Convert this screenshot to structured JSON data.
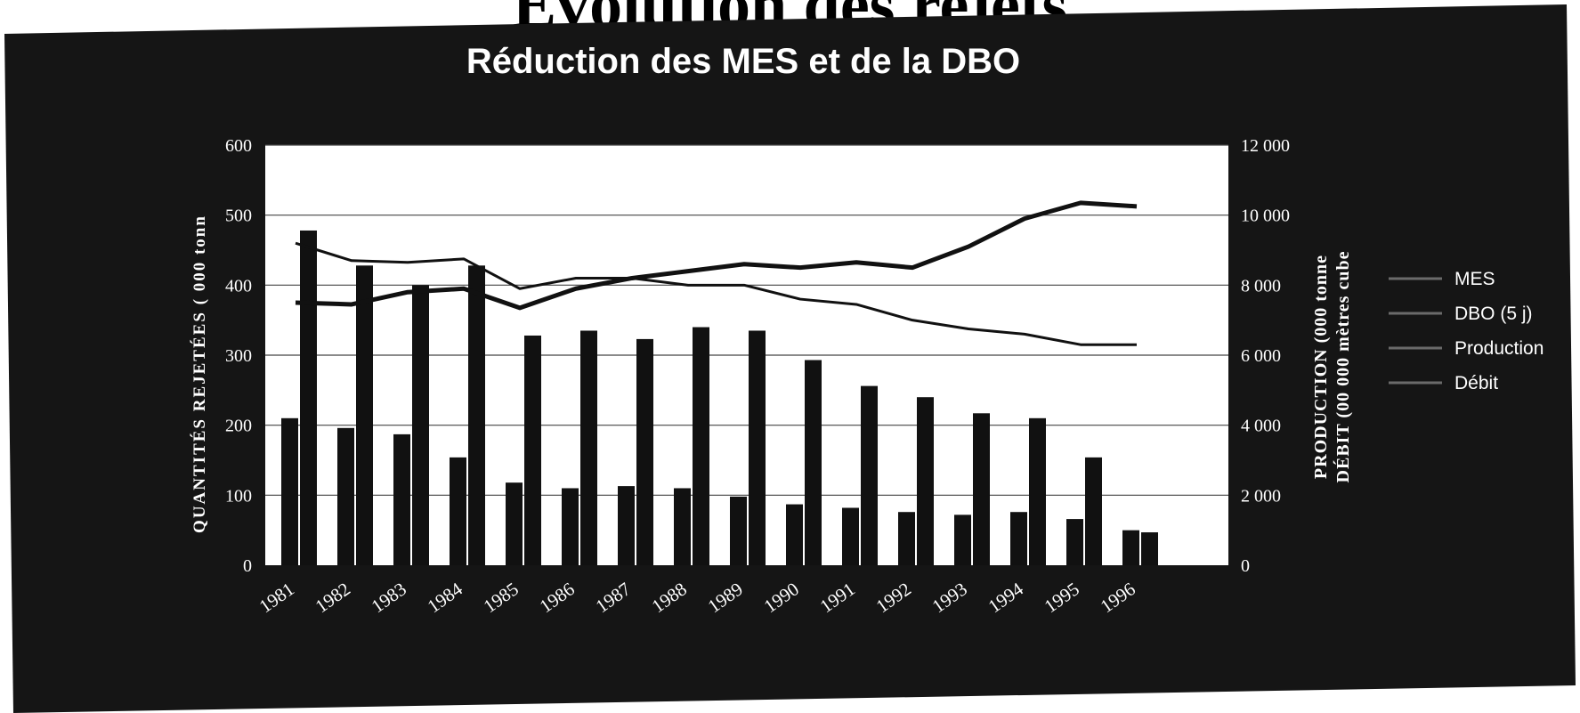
{
  "page": {
    "heading": "Evolution des rejets"
  },
  "chart_data": {
    "type": "bar",
    "title": "Réduction des MES et de la DBO",
    "categories": [
      "1981",
      "1982",
      "1983",
      "1984",
      "1985",
      "1986",
      "1987",
      "1988",
      "1989",
      "1990",
      "1991",
      "1992",
      "1993",
      "1994",
      "1995",
      "1996"
    ],
    "series": [
      {
        "name": "MES",
        "kind": "bar",
        "axis": "left",
        "color": "#111111",
        "values": [
          210,
          196,
          187,
          154,
          118,
          110,
          113,
          110,
          98,
          87,
          82,
          76,
          72,
          76,
          66,
          50
        ]
      },
      {
        "name": "DBO (5 j)",
        "kind": "bar",
        "axis": "left",
        "color": "#111111",
        "values": [
          478,
          428,
          400,
          428,
          328,
          335,
          323,
          340,
          335,
          293,
          256,
          240,
          217,
          210,
          154,
          47
        ]
      },
      {
        "name": "Production",
        "kind": "line",
        "axis": "right",
        "color": "#111111",
        "values": [
          9200,
          8700,
          8650,
          8750,
          7900,
          8200,
          8200,
          8000,
          8000,
          7600,
          7450,
          7000,
          6750,
          6600,
          6300,
          6300
        ]
      },
      {
        "name": "Débit",
        "kind": "line",
        "axis": "right",
        "color": "#111111",
        "values": [
          7500,
          7450,
          7800,
          7900,
          7350,
          7900,
          8200,
          8400,
          8600,
          8500,
          8650,
          8500,
          9100,
          9900,
          10350,
          10250
        ]
      }
    ],
    "ylabel": "QUANTITÉS REJETÉES ( 000 tonn",
    "y2label_line1": "PRODUCTION (000 tonne",
    "y2label_line2": "DÉBIT (00 000 mètres cube",
    "ylim": [
      0,
      600
    ],
    "y2lim": [
      0,
      12000
    ],
    "yticks": [
      "0",
      "100",
      "200",
      "300",
      "400",
      "500",
      "600"
    ],
    "y2ticks": [
      "0",
      "2 000",
      "4 000",
      "6 000",
      "8 000",
      "10 000",
      "12 000"
    ],
    "grid": true,
    "legend_placement": "right",
    "background": "#151515",
    "plot_background": "#ffffff"
  }
}
